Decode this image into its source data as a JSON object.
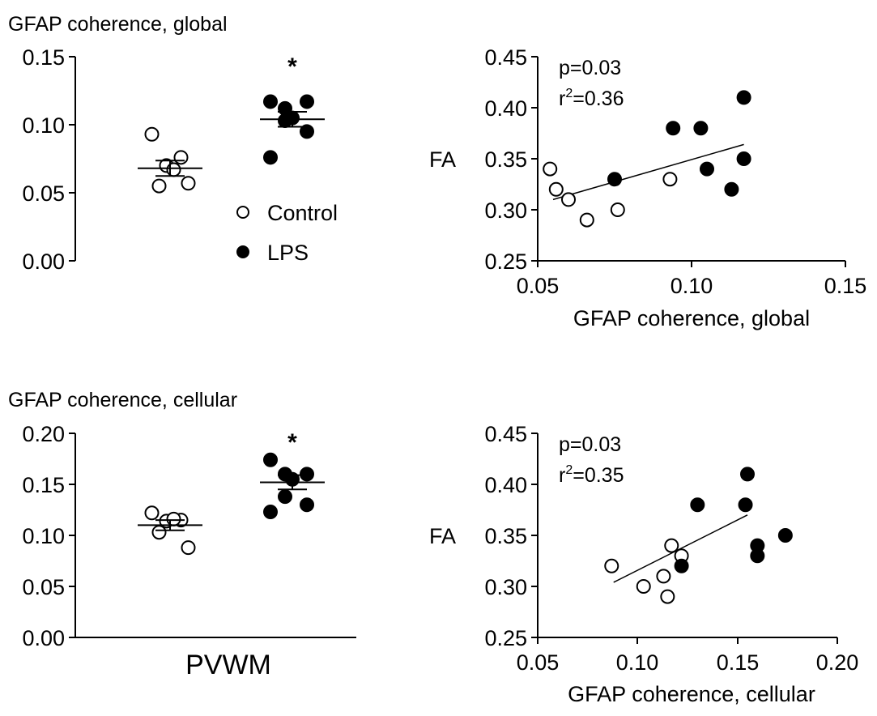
{
  "chart_data": [
    {
      "type": "scatter",
      "title": "GFAP coherence, global",
      "xlabel": "",
      "ylabel": "",
      "ylim": [
        0,
        0.15
      ],
      "yticks": [
        "0.00",
        "0.05",
        "0.10",
        "0.15"
      ],
      "significance": "*",
      "series": [
        {
          "name": "Control",
          "marker": "open-circle",
          "values": [
            0.093,
            0.076,
            0.07,
            0.067,
            0.055,
            0.057
          ],
          "mean": 0.068
        },
        {
          "name": "LPS",
          "marker": "filled-circle",
          "values": [
            0.117,
            0.117,
            0.112,
            0.105,
            0.103,
            0.095,
            0.076
          ],
          "mean": 0.104
        }
      ],
      "legend": {
        "position": "bottom-right",
        "entries": [
          {
            "label": "Control",
            "marker": "open-circle"
          },
          {
            "label": "LPS",
            "marker": "filled-circle"
          }
        ]
      }
    },
    {
      "type": "scatter",
      "title": "",
      "xlabel": "GFAP coherence, global",
      "ylabel": "FA",
      "xlim": [
        0.05,
        0.15
      ],
      "ylim": [
        0.25,
        0.45
      ],
      "xticks": [
        "0.05",
        "0.10",
        "0.15"
      ],
      "yticks": [
        "0.25",
        "0.30",
        "0.35",
        "0.40",
        "0.45"
      ],
      "annotation": {
        "p": "p=0.03",
        "r2_prefix": "r",
        "r2_sup": "2",
        "r2_value": "=0.36"
      },
      "fit_line": {
        "x": [
          0.055,
          0.117
        ],
        "y": [
          0.31,
          0.364
        ]
      },
      "series": [
        {
          "name": "Control",
          "marker": "open-circle",
          "x": [
            0.054,
            0.056,
            0.06,
            0.066,
            0.076,
            0.093
          ],
          "y": [
            0.34,
            0.32,
            0.31,
            0.29,
            0.3,
            0.33
          ]
        },
        {
          "name": "LPS",
          "marker": "filled-circle",
          "x": [
            0.075,
            0.094,
            0.103,
            0.105,
            0.113,
            0.117,
            0.117
          ],
          "y": [
            0.33,
            0.38,
            0.38,
            0.34,
            0.32,
            0.35,
            0.41
          ]
        }
      ]
    },
    {
      "type": "scatter",
      "title": "GFAP coherence, cellular",
      "xlabel": "PVWM",
      "ylabel": "",
      "ylim": [
        0,
        0.2
      ],
      "yticks": [
        "0.00",
        "0.05",
        "0.10",
        "0.15",
        "0.20"
      ],
      "significance": "*",
      "series": [
        {
          "name": "Control",
          "marker": "open-circle",
          "values": [
            0.122,
            0.115,
            0.114,
            0.116,
            0.103,
            0.088
          ],
          "mean": 0.11
        },
        {
          "name": "LPS",
          "marker": "filled-circle",
          "values": [
            0.174,
            0.16,
            0.16,
            0.155,
            0.138,
            0.13,
            0.123
          ],
          "mean": 0.152
        }
      ]
    },
    {
      "type": "scatter",
      "title": "",
      "xlabel": "GFAP coherence, cellular",
      "ylabel": "FA",
      "xlim": [
        0.05,
        0.2
      ],
      "ylim": [
        0.25,
        0.45
      ],
      "xticks": [
        "0.05",
        "0.10",
        "0.15",
        "0.20"
      ],
      "yticks": [
        "0.25",
        "0.30",
        "0.35",
        "0.40",
        "0.45"
      ],
      "annotation": {
        "p": "p=0.03",
        "r2_prefix": "r",
        "r2_sup": "2",
        "r2_value": "=0.35"
      },
      "fit_line": {
        "x": [
          0.088,
          0.155
        ],
        "y": [
          0.304,
          0.37
        ]
      },
      "series": [
        {
          "name": "Control",
          "marker": "open-circle",
          "x": [
            0.087,
            0.103,
            0.113,
            0.115,
            0.117,
            0.122
          ],
          "y": [
            0.32,
            0.3,
            0.31,
            0.29,
            0.34,
            0.33
          ]
        },
        {
          "name": "LPS",
          "marker": "filled-circle",
          "x": [
            0.122,
            0.13,
            0.154,
            0.155,
            0.16,
            0.16,
            0.174
          ],
          "y": [
            0.32,
            0.38,
            0.38,
            0.41,
            0.34,
            0.33,
            0.35
          ]
        }
      ]
    }
  ]
}
